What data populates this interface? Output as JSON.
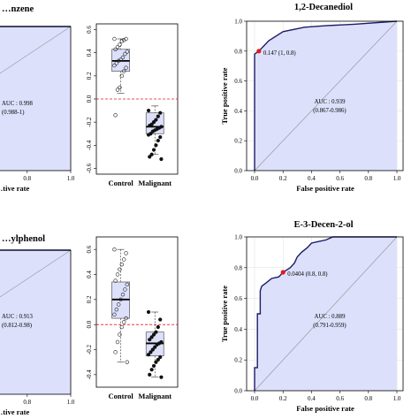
{
  "chart_data": [
    {
      "type": "roc",
      "title": "…nzene",
      "xlabel": "…tive rate",
      "ylabel": "",
      "xticks": [
        "0.6",
        "0.8",
        "1.0"
      ],
      "auc_label": "AUC : 0.998",
      "ci_label": "(0.988-1)",
      "curve": [
        [
          0,
          0
        ],
        [
          0,
          1
        ],
        [
          1,
          1
        ]
      ]
    },
    {
      "type": "boxplot",
      "categories": [
        "Control",
        "Malignant"
      ],
      "yticks": [
        "0.6",
        "0.4",
        "0.2",
        "0.0",
        "-0.2",
        "-0.4",
        "-0.6"
      ],
      "ylim": [
        -0.65,
        0.65
      ],
      "cutoff": 0,
      "boxes": [
        {
          "name": "Control",
          "q1": 0.24,
          "median": 0.33,
          "q3": 0.43,
          "whisker_low": 0.05,
          "whisker_high": 0.52
        },
        {
          "name": "Malignant",
          "q1": -0.3,
          "median": -0.24,
          "q3": -0.12,
          "whisker_low": -0.48,
          "whisker_high": -0.06
        }
      ],
      "points": [
        {
          "group": "Control",
          "values": [
            0.52,
            0.52,
            0.51,
            0.5,
            0.47,
            0.45,
            0.43,
            0.41,
            0.39,
            0.36,
            0.34,
            0.33,
            0.31,
            0.29,
            0.27,
            0.24,
            0.2,
            0.1,
            0.08,
            -0.14
          ]
        },
        {
          "group": "Malignant",
          "values": [
            -0.1,
            -0.12,
            -0.15,
            -0.18,
            -0.2,
            -0.22,
            -0.23,
            -0.24,
            -0.25,
            -0.26,
            -0.27,
            -0.28,
            -0.3,
            -0.31,
            -0.33,
            -0.36,
            -0.4,
            -0.44,
            -0.48,
            -0.5,
            -0.52
          ]
        }
      ]
    },
    {
      "type": "roc",
      "title": "1,2-Decanediol",
      "xlabel": "False positive rate",
      "ylabel": "True positive rate",
      "xticks": [
        "0.0",
        "0.2",
        "0.4",
        "0.6",
        "0.8",
        "1.0"
      ],
      "yticks": [
        "0.0",
        "0.2",
        "0.4",
        "0.6",
        "0.8",
        "1.0"
      ],
      "auc_label": "AUC : 0.939",
      "ci_label": "(0.867-0.986)",
      "threshold_label": "0.147 (1, 0.8)",
      "threshold_point": [
        0.03,
        0.8
      ],
      "curve": [
        [
          0,
          0
        ],
        [
          0,
          0.78
        ],
        [
          0.03,
          0.8
        ],
        [
          0.1,
          0.87
        ],
        [
          0.2,
          0.93
        ],
        [
          0.35,
          0.96
        ],
        [
          0.5,
          0.97
        ],
        [
          0.7,
          0.98
        ],
        [
          1,
          1
        ]
      ]
    },
    {
      "type": "roc",
      "title": "…ylphenol",
      "xlabel": "…tive rate",
      "ylabel": "",
      "xticks": [
        "0.6",
        "0.8",
        "1.0"
      ],
      "auc_label": "AUC : 0.913",
      "ci_label": "(0.812-0.98)",
      "curve": [
        [
          0,
          0
        ],
        [
          0,
          1
        ],
        [
          1,
          1
        ]
      ]
    },
    {
      "type": "boxplot",
      "categories": [
        "Control",
        "Malignant"
      ],
      "yticks": [
        "0.6",
        "0.4",
        "0.2",
        "0.0",
        "-0.2",
        "-0.4"
      ],
      "ylim": [
        -0.5,
        0.7
      ],
      "cutoff": 0,
      "boxes": [
        {
          "name": "Control",
          "q1": 0.05,
          "median": 0.2,
          "q3": 0.34,
          "whisker_low": -0.3,
          "whisker_high": 0.6
        },
        {
          "name": "Malignant",
          "q1": -0.25,
          "median": -0.15,
          "q3": -0.06,
          "whisker_low": -0.42,
          "whisker_high": 0.1
        }
      ],
      "points": [
        {
          "group": "Control",
          "values": [
            0.6,
            0.57,
            0.52,
            0.48,
            0.44,
            0.4,
            0.35,
            0.32,
            0.28,
            0.24,
            0.2,
            0.16,
            0.12,
            0.08,
            0.05,
            0.02,
            -0.02,
            -0.08,
            -0.14,
            -0.22,
            -0.3
          ]
        },
        {
          "group": "Malignant",
          "values": [
            0.1,
            0.04,
            -0.02,
            -0.06,
            -0.08,
            -0.1,
            -0.12,
            -0.14,
            -0.15,
            -0.16,
            -0.18,
            -0.2,
            -0.22,
            -0.24,
            -0.26,
            -0.28,
            -0.3,
            -0.33,
            -0.36,
            -0.4,
            -0.42
          ]
        }
      ]
    },
    {
      "type": "roc",
      "title": "E-3-Decen-2-ol",
      "xlabel": "False positive rate",
      "ylabel": "True positive rate",
      "xticks": [
        "0.0",
        "0.2",
        "0.4",
        "0.6",
        "0.8",
        "1.0"
      ],
      "yticks": [
        "0.0",
        "0.2",
        "0.4",
        "0.6",
        "0.8",
        "1.0"
      ],
      "auc_label": "AUC : 0.889",
      "ci_label": "(0.791-0.959)",
      "threshold_label": "0.0404 (0.8, 0.8)",
      "threshold_point": [
        0.2,
        0.77
      ],
      "curve": [
        [
          0,
          0
        ],
        [
          0,
          0.15
        ],
        [
          0.02,
          0.15
        ],
        [
          0.02,
          0.5
        ],
        [
          0.04,
          0.5
        ],
        [
          0.04,
          0.65
        ],
        [
          0.05,
          0.68
        ],
        [
          0.08,
          0.7
        ],
        [
          0.12,
          0.73
        ],
        [
          0.17,
          0.74
        ],
        [
          0.2,
          0.77
        ],
        [
          0.25,
          0.8
        ],
        [
          0.28,
          0.83
        ],
        [
          0.3,
          0.87
        ],
        [
          0.33,
          0.9
        ],
        [
          0.37,
          0.93
        ],
        [
          0.4,
          0.96
        ],
        [
          0.45,
          0.97
        ],
        [
          0.5,
          0.98
        ],
        [
          0.55,
          1
        ],
        [
          1,
          1
        ]
      ]
    }
  ]
}
